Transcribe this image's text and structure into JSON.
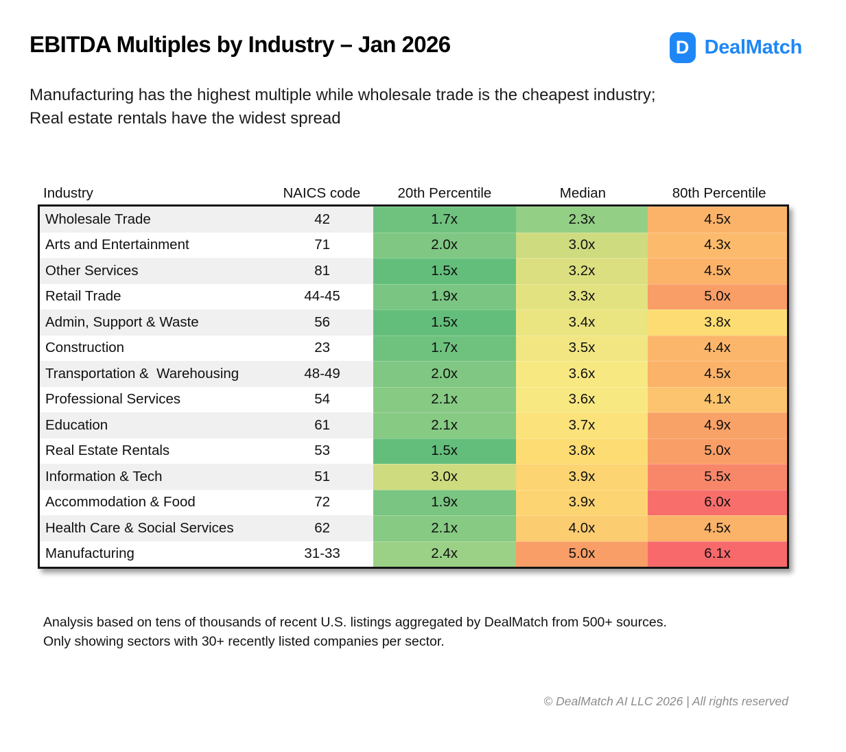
{
  "header": {
    "title": "EBITDA Multiples by Industry – Jan 2026",
    "logo": {
      "mark": "D",
      "name": "DealMatch",
      "brand_color": "#1F87F5"
    },
    "subtitle": "Manufacturing has the highest multiple while wholesale trade is the cheapest industry;\nReal estate rentals have the widest spread"
  },
  "footnote": {
    "text": "Analysis based on tens of thousands of recent U.S. listings aggregated by DealMatch from 500+ sources.\nOnly showing sectors with 30+ recently listed companies per sector."
  },
  "footer": {
    "copyright": "© DealMatch AI LLC 2026 | All rights reserved"
  },
  "chart_data": {
    "type": "table",
    "title": "EBITDA Multiples by Industry – Jan 2026",
    "columns": [
      "Industry",
      "NAICS code",
      "20th Percentile",
      "Median",
      "80th Percentile"
    ],
    "value_suffix": "x",
    "rows": [
      {
        "industry": "Wholesale Trade",
        "naics": "42",
        "p20": 1.7,
        "median": 2.3,
        "p80": 4.5
      },
      {
        "industry": "Arts and Entertainment",
        "naics": "71",
        "p20": 2.0,
        "median": 3.0,
        "p80": 4.3
      },
      {
        "industry": "Other Services",
        "naics": "81",
        "p20": 1.5,
        "median": 3.2,
        "p80": 4.5
      },
      {
        "industry": "Retail Trade",
        "naics": "44-45",
        "p20": 1.9,
        "median": 3.3,
        "p80": 5.0
      },
      {
        "industry": "Admin, Support & Waste",
        "naics": "56",
        "p20": 1.5,
        "median": 3.4,
        "p80": 3.8
      },
      {
        "industry": "Construction",
        "naics": "23",
        "p20": 1.7,
        "median": 3.5,
        "p80": 4.4
      },
      {
        "industry": "Transportation &  Warehousing",
        "naics": "48-49",
        "p20": 2.0,
        "median": 3.6,
        "p80": 4.5
      },
      {
        "industry": "Professional Services",
        "naics": "54",
        "p20": 2.1,
        "median": 3.6,
        "p80": 4.1
      },
      {
        "industry": "Education",
        "naics": "61",
        "p20": 2.1,
        "median": 3.7,
        "p80": 4.9
      },
      {
        "industry": "Real Estate Rentals",
        "naics": "53",
        "p20": 1.5,
        "median": 3.8,
        "p80": 5.0
      },
      {
        "industry": "Information & Tech",
        "naics": "51",
        "p20": 3.0,
        "median": 3.9,
        "p80": 5.5
      },
      {
        "industry": "Accommodation & Food",
        "naics": "72",
        "p20": 1.9,
        "median": 3.9,
        "p80": 6.0
      },
      {
        "industry": "Health Care & Social Services",
        "naics": "62",
        "p20": 2.1,
        "median": 4.0,
        "p80": 4.5
      },
      {
        "industry": "Manufacturing",
        "naics": "31-33",
        "p20": 2.4,
        "median": 5.0,
        "p80": 6.1
      }
    ],
    "heatmap": {
      "description": "green-yellow-red color scale applied globally to all multiple values",
      "domain": [
        1.5,
        6.1
      ],
      "stops": [
        [
          1.5,
          "#63BE7B"
        ],
        [
          2.0,
          "#7FC782"
        ],
        [
          2.4,
          "#9AD186"
        ],
        [
          3.0,
          "#CEDB7F"
        ],
        [
          3.6,
          "#F8E882"
        ],
        [
          3.8,
          "#FDDC73"
        ],
        [
          4.1,
          "#FCC46F"
        ],
        [
          4.5,
          "#FBB269"
        ],
        [
          5.0,
          "#F99E66"
        ],
        [
          5.5,
          "#F8876A"
        ],
        [
          6.1,
          "#F8696B"
        ]
      ]
    },
    "row_alt_colors": [
      "#F0F0F1",
      "#FFFFFF"
    ],
    "legend_position": "none",
    "grid": false
  }
}
